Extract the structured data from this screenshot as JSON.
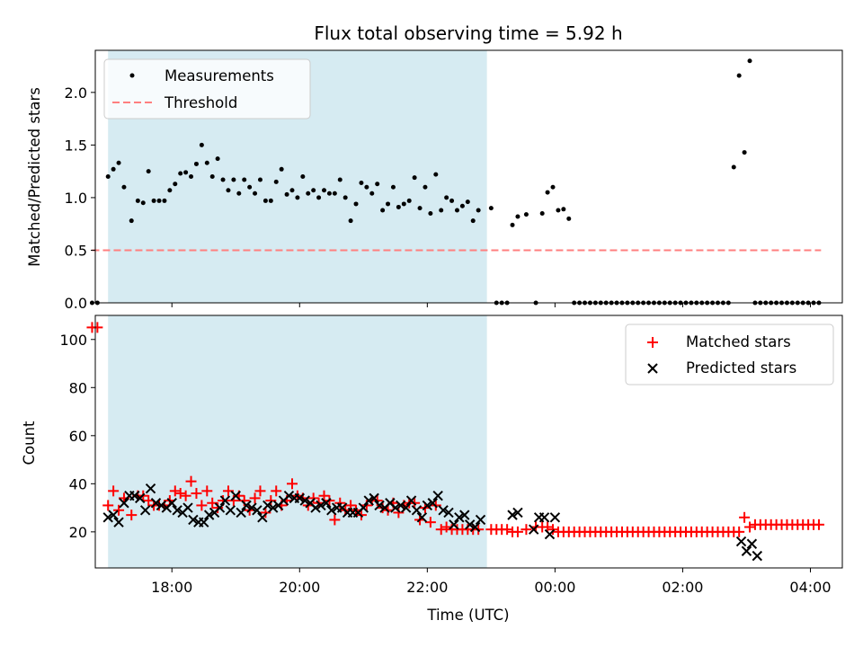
{
  "chart_data": [
    {
      "type": "scatter",
      "title": "Flux total observing time = 5.92 h",
      "ylabel": "Matched/Predicted stars",
      "xlabel": "",
      "xlim": [
        "16:48",
        "04:30"
      ],
      "ylim": [
        0,
        2.4
      ],
      "yticks": [
        "0.0",
        "0.5",
        "1.0",
        "1.5",
        "2.0"
      ],
      "shaded_span": [
        "17:00",
        "22:56"
      ],
      "shade_color": "#add8e6",
      "legend": {
        "position": "top-left",
        "entries": [
          "Measurements",
          "Threshold"
        ]
      },
      "threshold": {
        "name": "Threshold",
        "value": 0.5,
        "x_range": [
          "16:45",
          "04:10"
        ],
        "color": "#ff7f7f"
      },
      "series": [
        {
          "name": "Measurements",
          "color": "#000000",
          "marker": "point",
          "x": [
            "16:45",
            "16:50",
            "17:00",
            "17:05",
            "17:10",
            "17:15",
            "17:22",
            "17:28",
            "17:33",
            "17:38",
            "17:43",
            "17:48",
            "17:53",
            "17:58",
            "18:03",
            "18:08",
            "18:13",
            "18:18",
            "18:23",
            "18:28",
            "18:33",
            "18:38",
            "18:43",
            "18:48",
            "18:53",
            "18:58",
            "19:03",
            "19:08",
            "19:13",
            "19:18",
            "19:23",
            "19:28",
            "19:33",
            "19:38",
            "19:43",
            "19:48",
            "19:53",
            "19:58",
            "20:03",
            "20:08",
            "20:13",
            "20:18",
            "20:23",
            "20:28",
            "20:33",
            "20:38",
            "20:43",
            "20:48",
            "20:53",
            "20:58",
            "21:03",
            "21:08",
            "21:13",
            "21:18",
            "21:23",
            "21:28",
            "21:33",
            "21:38",
            "21:43",
            "21:48",
            "21:53",
            "21:58",
            "22:03",
            "22:08",
            "22:13",
            "22:18",
            "22:23",
            "22:28",
            "22:33",
            "22:38",
            "22:43",
            "22:48",
            "23:00",
            "23:05",
            "23:10",
            "23:15",
            "23:20",
            "23:25",
            "23:33",
            "23:42",
            "23:48",
            "23:53",
            "23:58",
            "00:03",
            "00:08",
            "00:13",
            "00:18",
            "00:23",
            "00:28",
            "00:33",
            "00:38",
            "00:43",
            "00:48",
            "00:53",
            "00:58",
            "01:03",
            "01:08",
            "01:13",
            "01:18",
            "01:23",
            "01:28",
            "01:33",
            "01:38",
            "01:43",
            "01:48",
            "01:53",
            "01:58",
            "02:03",
            "02:08",
            "02:13",
            "02:18",
            "02:23",
            "02:28",
            "02:33",
            "02:38",
            "02:43",
            "02:48",
            "02:53",
            "02:58",
            "03:03",
            "03:08",
            "03:13",
            "03:18",
            "03:23",
            "03:28",
            "03:33",
            "03:38",
            "03:43",
            "03:48",
            "03:53",
            "03:58",
            "04:03",
            "04:08"
          ],
          "y": [
            0,
            0,
            1.2,
            1.27,
            1.33,
            1.1,
            0.78,
            0.97,
            0.95,
            1.25,
            0.97,
            0.97,
            0.97,
            1.07,
            1.13,
            1.23,
            1.24,
            1.2,
            1.32,
            1.5,
            1.33,
            1.2,
            1.37,
            1.17,
            1.07,
            1.17,
            1.04,
            1.17,
            1.1,
            1.04,
            1.17,
            0.97,
            0.97,
            1.15,
            1.27,
            1.03,
            1.07,
            1.0,
            1.2,
            1.04,
            1.07,
            1.0,
            1.07,
            1.04,
            1.04,
            1.17,
            1.0,
            0.78,
            0.94,
            1.14,
            1.1,
            1.04,
            1.13,
            0.88,
            0.94,
            1.1,
            0.91,
            0.94,
            0.97,
            1.19,
            0.9,
            1.1,
            0.85,
            1.22,
            0.88,
            1.0,
            0.97,
            0.88,
            0.92,
            0.96,
            0.78,
            0.88,
            0.9,
            0,
            0,
            0,
            0.74,
            0.82,
            0.84,
            0,
            0.85,
            1.05,
            1.1,
            0.88,
            0.89,
            0.8,
            0,
            0,
            0,
            0,
            0,
            0,
            0,
            0,
            0,
            0,
            0,
            0,
            0,
            0,
            0,
            0,
            0,
            0,
            0,
            0,
            0,
            0,
            0,
            0,
            0,
            0,
            0,
            0,
            0,
            0,
            1.29,
            2.16,
            1.43,
            2.3,
            0,
            0,
            0,
            0,
            0,
            0,
            0,
            0,
            0,
            0,
            0,
            0,
            0
          ]
        }
      ]
    },
    {
      "type": "scatter",
      "title": "",
      "xlabel": "Time (UTC)",
      "ylabel": "Count",
      "xlim": [
        "16:48",
        "04:30"
      ],
      "ylim": [
        5,
        110
      ],
      "xticks": [
        "18:00",
        "20:00",
        "22:00",
        "00:00",
        "02:00",
        "04:00"
      ],
      "yticks": [
        "20",
        "40",
        "60",
        "80",
        "100"
      ],
      "shaded_span": [
        "17:00",
        "22:56"
      ],
      "shade_color": "#add8e6",
      "legend": {
        "position": "top-right",
        "entries": [
          "Matched stars",
          "Predicted stars"
        ]
      },
      "series": [
        {
          "name": "Matched stars",
          "color": "#ff0000",
          "marker": "plus",
          "x": [
            "16:45",
            "16:50",
            "17:00",
            "17:05",
            "17:10",
            "17:15",
            "17:22",
            "17:28",
            "17:33",
            "17:38",
            "17:43",
            "17:48",
            "17:53",
            "17:58",
            "18:03",
            "18:08",
            "18:13",
            "18:18",
            "18:23",
            "18:28",
            "18:33",
            "18:38",
            "18:43",
            "18:48",
            "18:53",
            "18:58",
            "19:03",
            "19:08",
            "19:13",
            "19:18",
            "19:23",
            "19:28",
            "19:33",
            "19:38",
            "19:43",
            "19:48",
            "19:53",
            "19:58",
            "20:03",
            "20:08",
            "20:13",
            "20:18",
            "20:23",
            "20:28",
            "20:33",
            "20:38",
            "20:43",
            "20:48",
            "20:53",
            "20:58",
            "21:03",
            "21:08",
            "21:13",
            "21:18",
            "21:23",
            "21:28",
            "21:33",
            "21:38",
            "21:43",
            "21:48",
            "21:53",
            "21:58",
            "22:03",
            "22:08",
            "22:13",
            "22:18",
            "22:23",
            "22:28",
            "22:33",
            "22:38",
            "22:43",
            "22:48",
            "23:00",
            "23:05",
            "23:10",
            "23:15",
            "23:20",
            "23:25",
            "23:33",
            "23:42",
            "23:48",
            "23:53",
            "23:58",
            "00:03",
            "00:08",
            "00:13",
            "00:18",
            "00:23",
            "00:28",
            "00:33",
            "00:38",
            "00:43",
            "00:48",
            "00:53",
            "00:58",
            "01:03",
            "01:08",
            "01:13",
            "01:18",
            "01:23",
            "01:28",
            "01:33",
            "01:38",
            "01:43",
            "01:48",
            "01:53",
            "01:58",
            "02:03",
            "02:08",
            "02:13",
            "02:18",
            "02:23",
            "02:28",
            "02:33",
            "02:38",
            "02:43",
            "02:48",
            "02:53",
            "02:58",
            "03:03",
            "03:08",
            "03:13",
            "03:18",
            "03:23",
            "03:28",
            "03:33",
            "03:38",
            "03:43",
            "03:48",
            "03:53",
            "03:58",
            "04:03",
            "04:08"
          ],
          "y": [
            105,
            105,
            31,
            37,
            29,
            34,
            27,
            35,
            35,
            33,
            31,
            31,
            31,
            33,
            37,
            36,
            35,
            41,
            36,
            31,
            37,
            32,
            30,
            33,
            37,
            33,
            35,
            33,
            29,
            34,
            37,
            28,
            33,
            37,
            31,
            33,
            40,
            35,
            34,
            31,
            34,
            32,
            35,
            33,
            25,
            32,
            29,
            31,
            29,
            27,
            31,
            33,
            33,
            30,
            29,
            32,
            28,
            31,
            32,
            32,
            25,
            30,
            24,
            31,
            21,
            22,
            21,
            21,
            21,
            21,
            21,
            21,
            21,
            21,
            21,
            21,
            20,
            20,
            21,
            22,
            22,
            22,
            21,
            20,
            20,
            20,
            20,
            20,
            20,
            20,
            20,
            20,
            20,
            20,
            20,
            20,
            20,
            20,
            20,
            20,
            20,
            20,
            20,
            20,
            20,
            20,
            20,
            20,
            20,
            20,
            20,
            20,
            20,
            20,
            20,
            20,
            20,
            20,
            26,
            22,
            23,
            23,
            23,
            23,
            23,
            23,
            23,
            23,
            23,
            23,
            23,
            23,
            23
          ]
        },
        {
          "name": "Predicted stars",
          "color": "#000000",
          "marker": "x",
          "x": [
            "17:00",
            "17:05",
            "17:10",
            "17:15",
            "17:20",
            "17:25",
            "17:30",
            "17:35",
            "17:40",
            "17:45",
            "17:50",
            "17:55",
            "18:00",
            "18:05",
            "18:10",
            "18:15",
            "18:20",
            "18:25",
            "18:30",
            "18:35",
            "18:40",
            "18:45",
            "18:50",
            "18:55",
            "19:00",
            "19:05",
            "19:10",
            "19:15",
            "19:20",
            "19:25",
            "19:30",
            "19:35",
            "19:40",
            "19:45",
            "19:50",
            "19:55",
            "20:00",
            "20:05",
            "20:10",
            "20:15",
            "20:20",
            "20:25",
            "20:30",
            "20:35",
            "20:40",
            "20:45",
            "20:50",
            "20:55",
            "21:00",
            "21:05",
            "21:10",
            "21:15",
            "21:20",
            "21:25",
            "21:30",
            "21:35",
            "21:40",
            "21:45",
            "21:50",
            "21:55",
            "22:00",
            "22:05",
            "22:10",
            "22:15",
            "22:20",
            "22:25",
            "22:30",
            "22:35",
            "22:40",
            "22:45",
            "22:50",
            "23:20",
            "23:25",
            "23:40",
            "23:45",
            "23:50",
            "23:55",
            "00:00",
            "02:55",
            "03:00",
            "03:05",
            "03:10"
          ],
          "y": [
            26,
            27,
            24,
            32,
            35,
            35,
            34,
            29,
            38,
            32,
            31,
            30,
            32,
            29,
            28,
            30,
            25,
            24,
            24,
            27,
            28,
            30,
            33,
            29,
            35,
            28,
            31,
            30,
            29,
            26,
            31,
            30,
            31,
            33,
            35,
            34,
            34,
            33,
            32,
            30,
            31,
            32,
            29,
            30,
            30,
            28,
            28,
            28,
            30,
            33,
            34,
            31,
            30,
            32,
            30,
            31,
            30,
            33,
            29,
            26,
            31,
            32,
            35,
            29,
            28,
            23,
            26,
            27,
            23,
            22,
            25,
            27,
            28,
            21,
            26,
            26,
            19,
            26,
            16,
            12,
            15,
            10
          ]
        }
      ]
    }
  ]
}
